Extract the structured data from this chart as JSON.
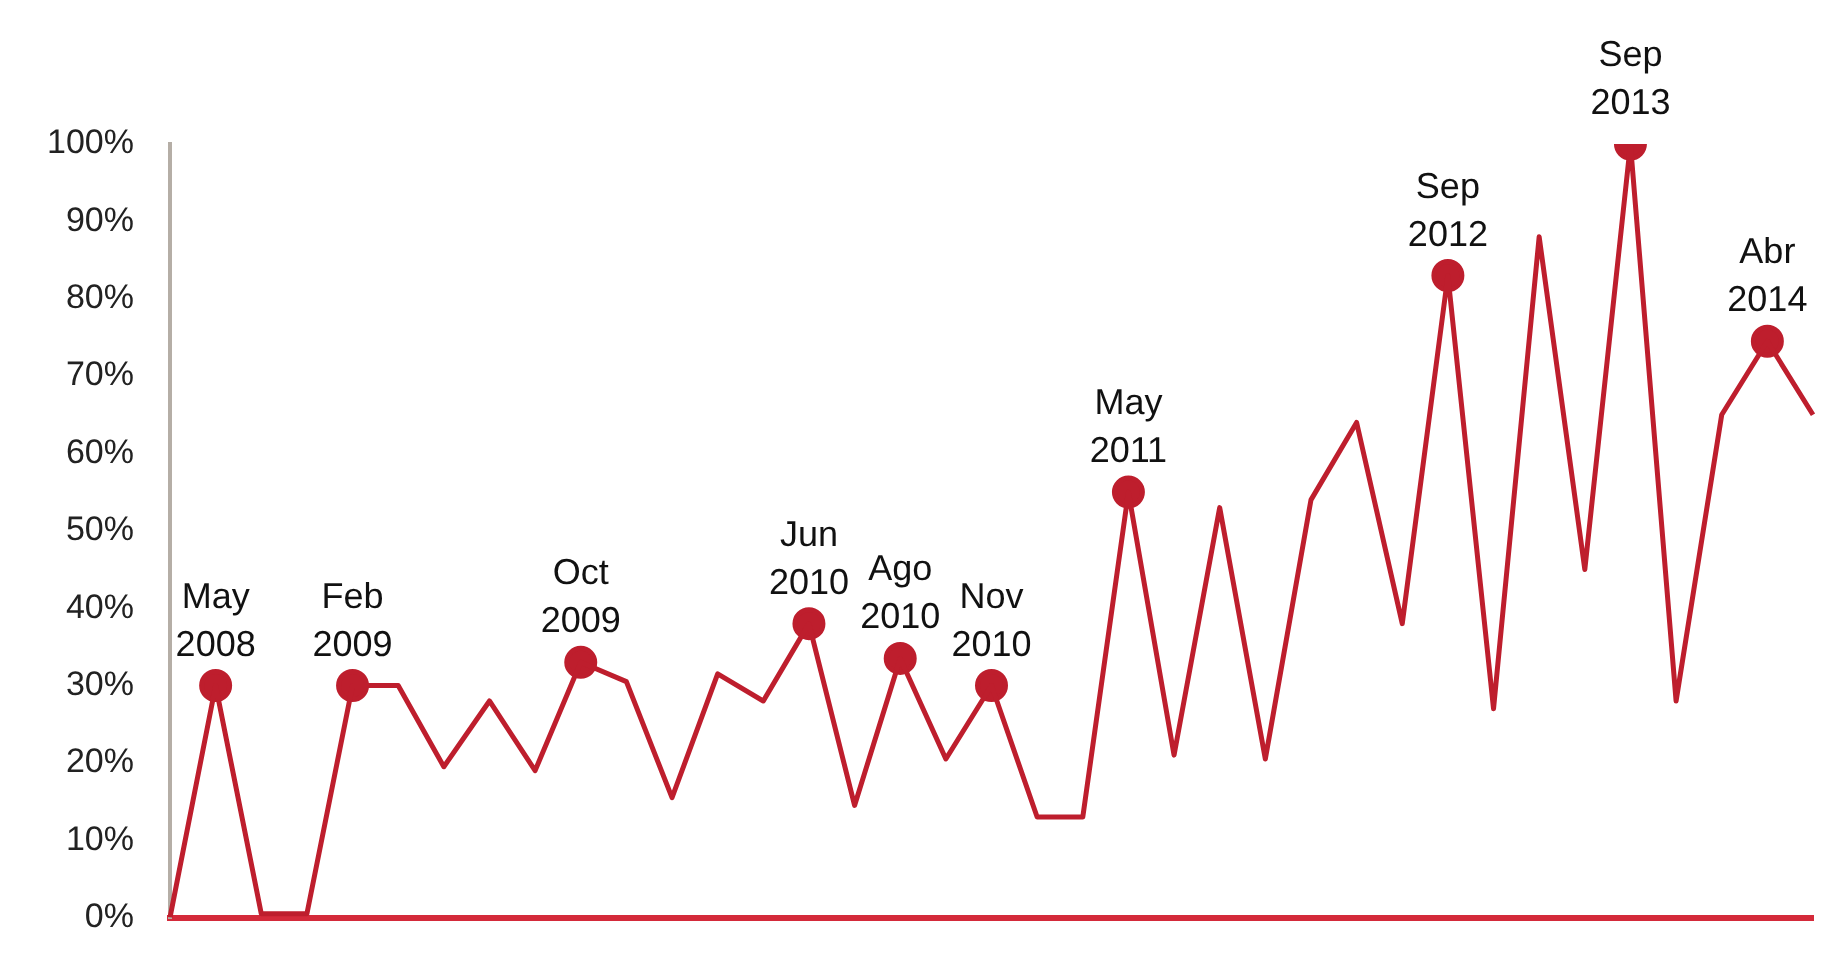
{
  "chart_data": {
    "type": "line",
    "categories": [
      null,
      "May 2008",
      null,
      null,
      "Feb 2009",
      null,
      null,
      null,
      null,
      "Oct 2009",
      null,
      null,
      null,
      null,
      "Jun 2010",
      null,
      "Ago 2010",
      null,
      "Nov 2010",
      null,
      null,
      "May 2011",
      null,
      null,
      null,
      null,
      null,
      null,
      "Sep 2012",
      null,
      null,
      null,
      "Sep 2013",
      null,
      null,
      "Abr 2014",
      null
    ],
    "series": [
      {
        "color": "#be1e2d",
        "marker": "none",
        "values": [
          0,
          30,
          0.5,
          0.5,
          30,
          30,
          19.5,
          28,
          19,
          33,
          30.5,
          15.5,
          31.5,
          28,
          38,
          14.5,
          33.5,
          20.5,
          30,
          13,
          13,
          55,
          21,
          53,
          20.5,
          54,
          64,
          38,
          83,
          27,
          88,
          45,
          100,
          28,
          65,
          74.5,
          65
        ]
      },
      {
        "type": "scatter",
        "color": "#be1e2d",
        "marker": "circle",
        "values": [
          null,
          30,
          null,
          null,
          30,
          null,
          null,
          null,
          null,
          33,
          null,
          null,
          null,
          null,
          38,
          null,
          33.5,
          null,
          30,
          null,
          null,
          55,
          null,
          null,
          null,
          null,
          null,
          null,
          83,
          null,
          null,
          null,
          100,
          null,
          null,
          74.5,
          null
        ]
      }
    ],
    "ylim": [
      0,
      100
    ],
    "yticks": [
      {
        "value": 0,
        "label": "0%"
      },
      {
        "value": 10,
        "label": "10%"
      },
      {
        "value": 20,
        "label": "20%"
      },
      {
        "value": 30,
        "label": "30%"
      },
      {
        "value": 40,
        "label": "40%"
      },
      {
        "value": 50,
        "label": "50%"
      },
      {
        "value": 60,
        "label": "60%"
      },
      {
        "value": 70,
        "label": "70%"
      },
      {
        "value": 80,
        "label": "80%"
      },
      {
        "value": 90,
        "label": "90%"
      },
      {
        "value": 100,
        "label": "100%"
      }
    ],
    "tick_labels": "y",
    "grid": false,
    "legend": false,
    "line_style": "solid"
  }
}
